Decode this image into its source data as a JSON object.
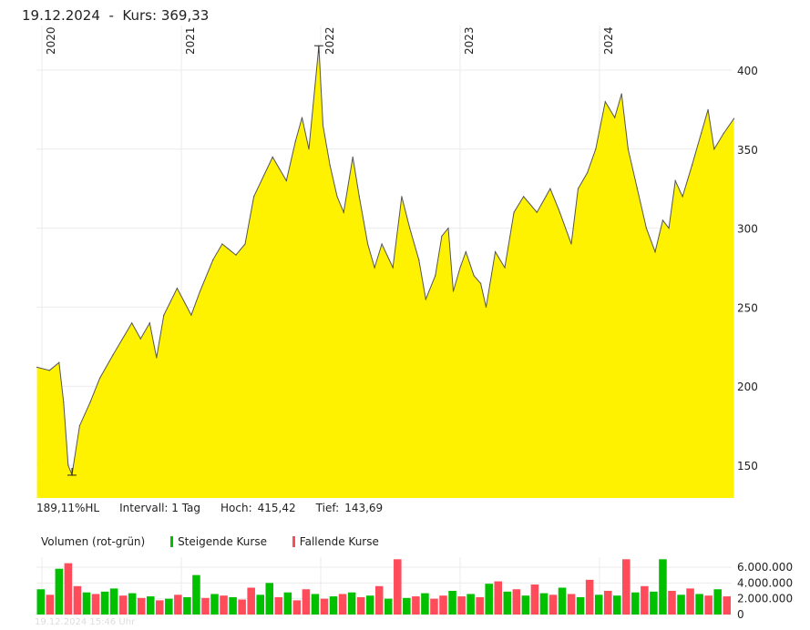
{
  "header": {
    "date": "19.12.2024",
    "separator": "-",
    "kurs_label": "Kurs:",
    "kurs_value": "369,33"
  },
  "info": {
    "hl": "189,11%HL",
    "interval": "Intervall: 1 Tag",
    "high_label": "Hoch:",
    "high_value": "415,42",
    "low_label": "Tief:",
    "low_value": "143,69"
  },
  "volume_legend": {
    "title": "Volumen (rot-grün)",
    "up": "Steigende Kurse",
    "down": "Fallende Kurse"
  },
  "timestamp": "19.12.2024 15:46 Uhr",
  "colors": {
    "area": "#fff200",
    "line": "#555555",
    "up": "#00c000",
    "down": "#ff4b5a",
    "grid": "#ebebeb"
  },
  "chart_data": [
    {
      "type": "area",
      "title": "",
      "xlabel": "",
      "ylabel": "",
      "ylim": [
        130,
        425
      ],
      "grid": true,
      "x_ticks": [
        "2020",
        "2021",
        "2022",
        "2023",
        "2024"
      ],
      "y_ticks": [
        "150",
        "200",
        "250",
        "300",
        "350",
        "400"
      ],
      "high": {
        "date": "2021-12-27",
        "value": 415.42
      },
      "low": {
        "date": "2020-03-20",
        "value": 143.69
      },
      "x": [
        "2019-12-19",
        "2020-01-21",
        "2020-02-15",
        "2020-02-27",
        "2020-03-10",
        "2020-03-20",
        "2020-04-09",
        "2020-05-07",
        "2020-06-01",
        "2020-07-06",
        "2020-08-24",
        "2020-09-16",
        "2020-10-10",
        "2020-10-28",
        "2020-11-16",
        "2020-12-21",
        "2021-01-27",
        "2021-02-19",
        "2021-03-25",
        "2021-04-18",
        "2021-05-24",
        "2021-06-17",
        "2021-07-10",
        "2021-08-28",
        "2021-10-03",
        "2021-10-27",
        "2021-11-13",
        "2021-12-01",
        "2021-12-27",
        "2022-01-07",
        "2022-01-25",
        "2022-02-13",
        "2022-03-02",
        "2022-03-26",
        "2022-04-12",
        "2022-05-04",
        "2022-05-22",
        "2022-06-10",
        "2022-07-09",
        "2022-08-01",
        "2022-08-22",
        "2022-09-15",
        "2022-10-03",
        "2022-10-28",
        "2022-11-14",
        "2022-12-01",
        "2022-12-14",
        "2023-01-01",
        "2023-01-16",
        "2023-02-06",
        "2023-02-24",
        "2023-03-10",
        "2023-04-03",
        "2023-04-28",
        "2023-05-22",
        "2023-06-16",
        "2023-07-21",
        "2023-08-25",
        "2023-09-19",
        "2023-10-19",
        "2023-11-06",
        "2023-11-30",
        "2023-12-22",
        "2024-01-16",
        "2024-02-10",
        "2024-02-28",
        "2024-03-16",
        "2024-04-09",
        "2024-05-03",
        "2024-05-26",
        "2024-06-15",
        "2024-07-01",
        "2024-07-18",
        "2024-08-06",
        "2024-08-31",
        "2024-09-24",
        "2024-10-12",
        "2024-10-28",
        "2024-11-22",
        "2024-12-19"
      ],
      "values": [
        212,
        210,
        215,
        190,
        150,
        144,
        175,
        190,
        205,
        220,
        240,
        230,
        240,
        218,
        245,
        262,
        245,
        260,
        280,
        290,
        283,
        290,
        320,
        345,
        330,
        355,
        370,
        350,
        415,
        365,
        340,
        320,
        310,
        345,
        320,
        290,
        275,
        290,
        275,
        320,
        300,
        280,
        255,
        270,
        295,
        300,
        260,
        275,
        285,
        270,
        265,
        250,
        285,
        275,
        310,
        320,
        310,
        325,
        310,
        290,
        325,
        335,
        350,
        380,
        370,
        385,
        350,
        325,
        300,
        285,
        305,
        300,
        330,
        320,
        340,
        360,
        375,
        350,
        360,
        369.33
      ]
    },
    {
      "type": "bar",
      "title": "Volumen (rot-grün)",
      "ylim": [
        0,
        7000000
      ],
      "y_ticks": [
        "0",
        "2.000.000",
        "4.000.000",
        "6.000.000"
      ],
      "series_names": [
        "Steigende Kurse",
        "Fallende Kurse"
      ],
      "values": [
        3.2,
        2.5,
        5.8,
        6.5,
        3.6,
        2.8,
        2.6,
        2.9,
        3.3,
        2.4,
        2.7,
        2.1,
        2.3,
        1.8,
        2.0,
        2.5,
        2.2,
        5.0,
        2.1,
        2.6,
        2.4,
        2.2,
        1.9,
        3.4,
        2.5,
        4.0,
        2.2,
        2.8,
        1.8,
        3.2,
        2.6,
        2.0,
        2.3,
        2.6,
        2.8,
        2.2,
        2.4,
        3.6,
        2.0,
        7.0,
        2.1,
        2.3,
        2.7,
        2.0,
        2.4,
        3.0,
        2.3,
        2.6,
        2.2,
        3.9,
        4.2,
        2.9,
        3.2,
        2.4,
        3.8,
        2.7,
        2.5,
        3.4,
        2.6,
        2.2,
        4.4,
        2.5,
        3.0,
        2.4,
        7.2,
        2.8,
        3.6,
        2.9,
        7.2,
        3.0,
        2.5,
        3.3,
        2.6,
        2.4,
        3.2,
        2.3
      ],
      "directions": [
        "up",
        "down",
        "up",
        "down",
        "down",
        "up",
        "down",
        "up",
        "up",
        "down",
        "up",
        "down",
        "up",
        "down",
        "up",
        "down",
        "up",
        "up",
        "down",
        "up",
        "down",
        "up",
        "down",
        "down",
        "up",
        "up",
        "down",
        "up",
        "down",
        "down",
        "up",
        "down",
        "up",
        "down",
        "up",
        "down",
        "up",
        "down",
        "up",
        "down",
        "up",
        "down",
        "up",
        "down",
        "down",
        "up",
        "down",
        "up",
        "down",
        "up",
        "down",
        "up",
        "down",
        "up",
        "down",
        "up",
        "down",
        "up",
        "down",
        "up",
        "down",
        "up",
        "down",
        "up",
        "down",
        "up",
        "down",
        "up",
        "up",
        "down",
        "up",
        "down",
        "up",
        "down",
        "up",
        "down"
      ]
    }
  ]
}
